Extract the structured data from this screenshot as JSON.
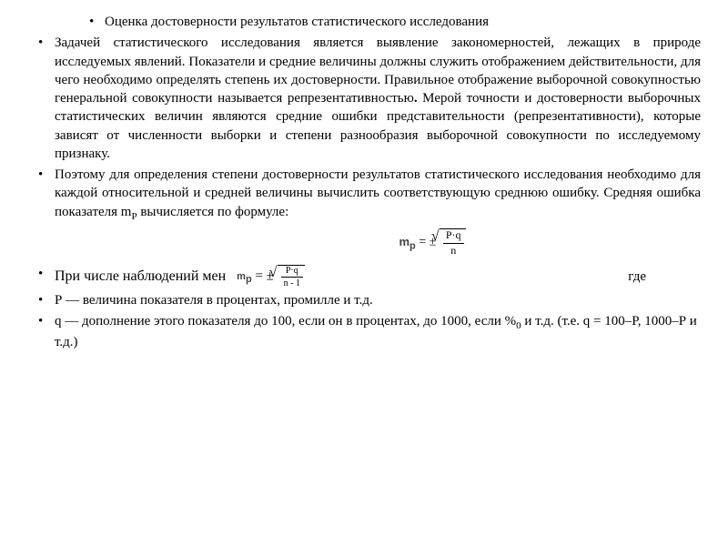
{
  "title": "Оценка достоверности результатов статистического исследования",
  "para1": "Задачей статистического исследования является выявление закономерностей, лежащих в природе исследуемых явлений. Показатели и средние величины должны служить отображением действительности, для чего необходимо определять степень их достоверности. Правильное отображение выборочной совокупностью генеральной совокупности называется репрезентативностью",
  "para1_bold": ".",
  "para1_cont": " Мерой точности и достоверности выборочных статистических величин являются средние ошибки представительности (репрезентативности), которые зависят от численности выборки и степени разнообразия выборочной совокупности по исследуемому признаку.",
  "para2": "Поэтому для определения степени достоверности результатов статистического исследования необходимо для каждой относительной и средней величины вычислить соответствующую среднюю ошибку. Средняя ошибка показателя m",
  "para2_sub": "Р",
  "para2_cont": " вычисляется по формуле:",
  "formula1": {
    "lhs": "m",
    "sub": "р",
    "op": " = ±",
    "num": "Р·q",
    "den": "n"
  },
  "obs_line": "При числе наблюдений   мен",
  "obs_where": "где",
  "formula2": {
    "lhs": "m",
    "sub": "р",
    "op": " = ±",
    "num": "Р·q",
    "den": "n - 1"
  },
  "def_p": "Р — величина показателя в процентах, промилле и т.д.",
  "def_q_a": "q — дополнение этого показателя до 100, если он в процентах, до 1000, если %",
  "def_q_sub": "0",
  "def_q_b": " и т.д. (т.е. q = 100–Р, 1000–Р и т.д.)"
}
